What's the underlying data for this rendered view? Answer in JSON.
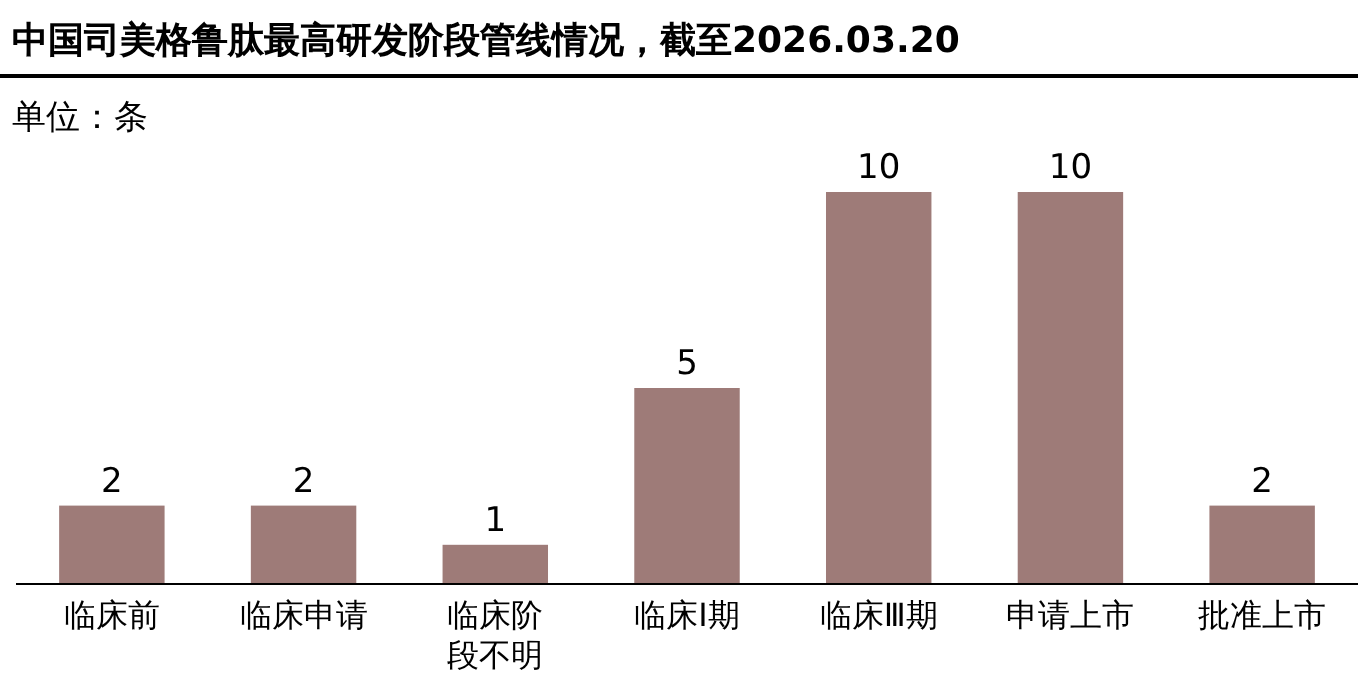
{
  "chart_data": {
    "type": "bar",
    "title": "中国司美格鲁肽最高研发阶段管线情况，截至2026.03.20",
    "ylabel": "单位：条",
    "categories": [
      "临床前",
      "临床申请",
      "临床阶段不明",
      "临床Ⅰ期",
      "临床Ⅲ期",
      "申请上市",
      "批准上市"
    ],
    "values": [
      2,
      2,
      1,
      5,
      10,
      10,
      2
    ],
    "color": "#9e7b78",
    "data_labels": true
  }
}
